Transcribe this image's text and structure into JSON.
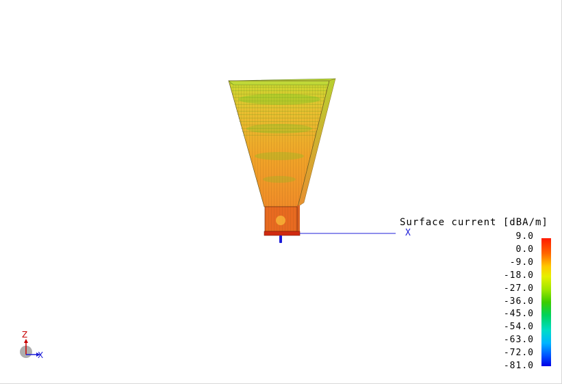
{
  "legend": {
    "title": "Surface current [dBA/m]",
    "ticks": [
      "9.0",
      "0.0",
      "-9.0",
      "-18.0",
      "-27.0",
      "-36.0",
      "-45.0",
      "-54.0",
      "-63.0",
      "-72.0",
      "-81.0"
    ],
    "range_max": 9.0,
    "range_min": -81.0,
    "colors": {
      "max": "#ff1a00",
      "high": "#ffc800",
      "mid": "#3ccc00",
      "low": "#00b4ff",
      "min": "#0000e6"
    }
  },
  "axes": {
    "x_label": "X",
    "gizmo_z_label": "Z",
    "gizmo_x_label": "X",
    "x_color": "#1c1cd8",
    "z_color": "#c80000"
  },
  "model": {
    "name_icon": "horn-antenna-model",
    "flare_color": "#f0a020",
    "waveguide_color": "#e85a20"
  }
}
